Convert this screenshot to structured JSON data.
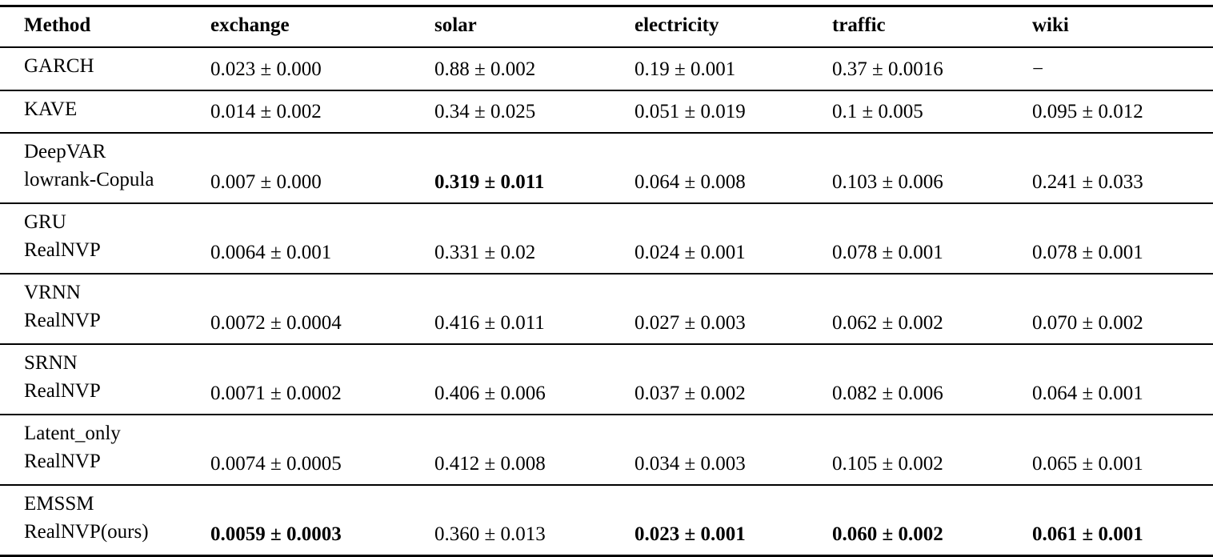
{
  "table": {
    "columns": [
      "Method",
      "exchange",
      "solar",
      "electricity",
      "traffic",
      "wiki"
    ],
    "plus_minus_symbol": "±",
    "missing_symbol": "−",
    "rows": [
      {
        "method": [
          "GARCH"
        ],
        "values": [
          {
            "text": "0.023 ± 0.000",
            "bold": false
          },
          {
            "text": "0.88 ± 0.002",
            "bold": false
          },
          {
            "text": "0.19 ± 0.001",
            "bold": false
          },
          {
            "text": "0.37 ± 0.0016",
            "bold": false
          },
          {
            "text": "−",
            "bold": false
          }
        ]
      },
      {
        "method": [
          "KAVE"
        ],
        "values": [
          {
            "text": "0.014 ± 0.002",
            "bold": false
          },
          {
            "text": "0.34 ± 0.025",
            "bold": false
          },
          {
            "text": "0.051 ± 0.019",
            "bold": false
          },
          {
            "text": "0.1 ± 0.005",
            "bold": false
          },
          {
            "text": "0.095 ± 0.012",
            "bold": false
          }
        ]
      },
      {
        "method": [
          "DeepVAR",
          "lowrank-Copula"
        ],
        "values": [
          {
            "text": "0.007 ± 0.000",
            "bold": false
          },
          {
            "text": "0.319 ± 0.011",
            "bold": true
          },
          {
            "text": "0.064 ± 0.008",
            "bold": false
          },
          {
            "text": "0.103 ± 0.006",
            "bold": false
          },
          {
            "text": "0.241 ± 0.033",
            "bold": false
          }
        ]
      },
      {
        "method": [
          "GRU",
          "RealNVP"
        ],
        "values": [
          {
            "text": "0.0064 ± 0.001",
            "bold": false
          },
          {
            "text": "0.331 ± 0.02",
            "bold": false
          },
          {
            "text": "0.024 ± 0.001",
            "bold": false
          },
          {
            "text": "0.078 ± 0.001",
            "bold": false
          },
          {
            "text": "0.078 ± 0.001",
            "bold": false
          }
        ]
      },
      {
        "method": [
          "VRNN",
          "RealNVP"
        ],
        "values": [
          {
            "text": "0.0072 ± 0.0004",
            "bold": false
          },
          {
            "text": "0.416 ± 0.011",
            "bold": false
          },
          {
            "text": "0.027 ± 0.003",
            "bold": false
          },
          {
            "text": "0.062 ± 0.002",
            "bold": false
          },
          {
            "text": "0.070 ± 0.002",
            "bold": false
          }
        ]
      },
      {
        "method": [
          "SRNN",
          "RealNVP"
        ],
        "values": [
          {
            "text": "0.0071 ± 0.0002",
            "bold": false
          },
          {
            "text": "0.406 ± 0.006",
            "bold": false
          },
          {
            "text": "0.037 ± 0.002",
            "bold": false
          },
          {
            "text": "0.082 ± 0.006",
            "bold": false
          },
          {
            "text": "0.064 ± 0.001",
            "bold": false
          }
        ]
      },
      {
        "method": [
          "Latent_only",
          "RealNVP"
        ],
        "values": [
          {
            "text": "0.0074 ± 0.0005",
            "bold": false
          },
          {
            "text": "0.412 ± 0.008",
            "bold": false
          },
          {
            "text": "0.034 ± 0.003",
            "bold": false
          },
          {
            "text": "0.105 ± 0.002",
            "bold": false
          },
          {
            "text": "0.065 ± 0.001",
            "bold": false
          }
        ]
      },
      {
        "method": [
          "EMSSM",
          "RealNVP(ours)"
        ],
        "values": [
          {
            "text": "0.0059 ± 0.0003",
            "bold": true
          },
          {
            "text": "0.360 ± 0.013",
            "bold": false
          },
          {
            "text": "0.023 ± 0.001",
            "bold": true
          },
          {
            "text": "0.060 ± 0.002",
            "bold": true
          },
          {
            "text": "0.061 ± 0.001",
            "bold": true
          }
        ]
      }
    ]
  }
}
